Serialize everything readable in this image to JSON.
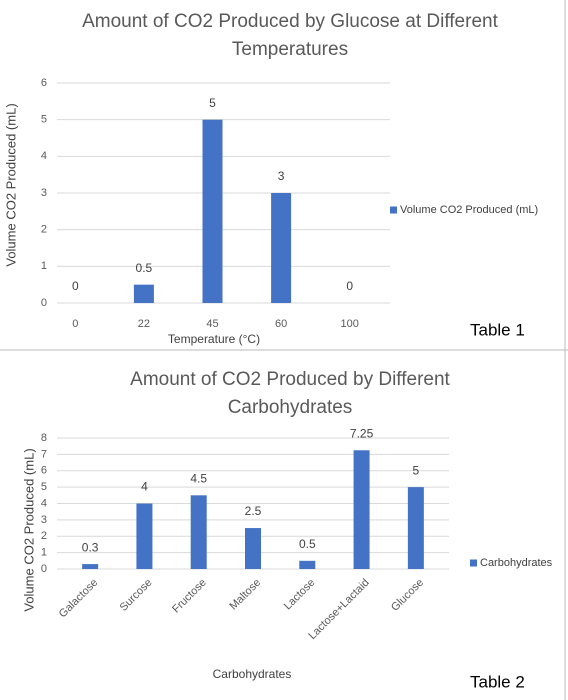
{
  "chart_data": [
    {
      "type": "bar",
      "title": "Amount of CO2 Produced by Glucose at Different Temperatures",
      "categories": [
        "0",
        "22",
        "45",
        "60",
        "100"
      ],
      "series": [
        {
          "name": "Volume CO2 Produced (mL)",
          "color": "#4472c4",
          "values": [
            0,
            0.5,
            5,
            3,
            0
          ]
        }
      ],
      "xlabel": "Temperature (°C)",
      "ylabel": "Volume CO2 Produced (mL)",
      "ylim": [
        0,
        6
      ],
      "yticks": [
        0,
        1,
        2,
        3,
        4,
        5,
        6
      ],
      "grid": true,
      "legend": "right",
      "annotation": "Table 1"
    },
    {
      "type": "bar",
      "title": "Amount of CO2 Produced by Different Carbohydrates",
      "categories": [
        "Galactose",
        "Surcose",
        "Fructose",
        "Maltose",
        "Lactose",
        "Lactose+Lactaid",
        "Glucose"
      ],
      "series": [
        {
          "name": "Carbohydrates",
          "color": "#4472c4",
          "values": [
            0.3,
            4,
            4.5,
            2.5,
            0.5,
            7.25,
            5
          ]
        }
      ],
      "xlabel": "Carbohydrates",
      "ylabel": "Volume CO2 Produced (mL)",
      "ylim": [
        0,
        8
      ],
      "yticks": [
        0,
        1,
        2,
        3,
        4,
        5,
        6,
        7,
        8
      ],
      "grid": true,
      "legend": "right",
      "annotation": "Table 2"
    }
  ]
}
